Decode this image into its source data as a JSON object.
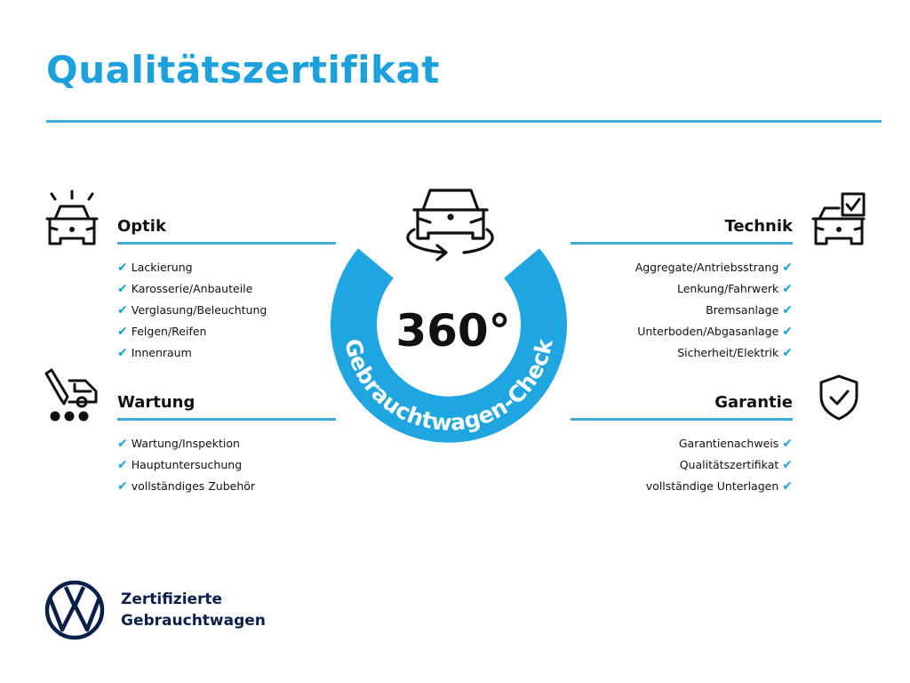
{
  "title": "Qualitätszertifikat",
  "accent_color": "#1da1dc",
  "center": {
    "value": "360°",
    "ring_text": "Gebrauchtwagen-Check",
    "icon": "car-rotate-icon"
  },
  "sections": {
    "optik": {
      "title": "Optik",
      "icon": "car-lights-icon",
      "items": [
        "Lackierung",
        "Karosserie/Anbauteile",
        "Verglasung/Beleuchtung",
        "Felgen/Reifen",
        "Innenraum"
      ]
    },
    "wartung": {
      "title": "Wartung",
      "icon": "service-van-icon",
      "items": [
        "Wartung/Inspektion",
        "Hauptuntersuchung",
        "vollständiges Zubehör"
      ]
    },
    "technik": {
      "title": "Technik",
      "icon": "car-checkbox-icon",
      "items": [
        "Aggregate/Antriebsstrang",
        "Lenkung/Fahrwerk",
        "Bremsanlage",
        "Unterboden/Abgasanlage",
        "Sicherheit/Elektrik"
      ]
    },
    "garantie": {
      "title": "Garantie",
      "icon": "shield-check-icon",
      "items": [
        "Garantienachweis",
        "Qualitätszertifikat",
        "vollständige Unterlagen"
      ]
    }
  },
  "check_mark": "✔",
  "brand": {
    "line1": "Zertifizierte",
    "line2": "Gebrauchtwagen",
    "logo": "VW"
  }
}
